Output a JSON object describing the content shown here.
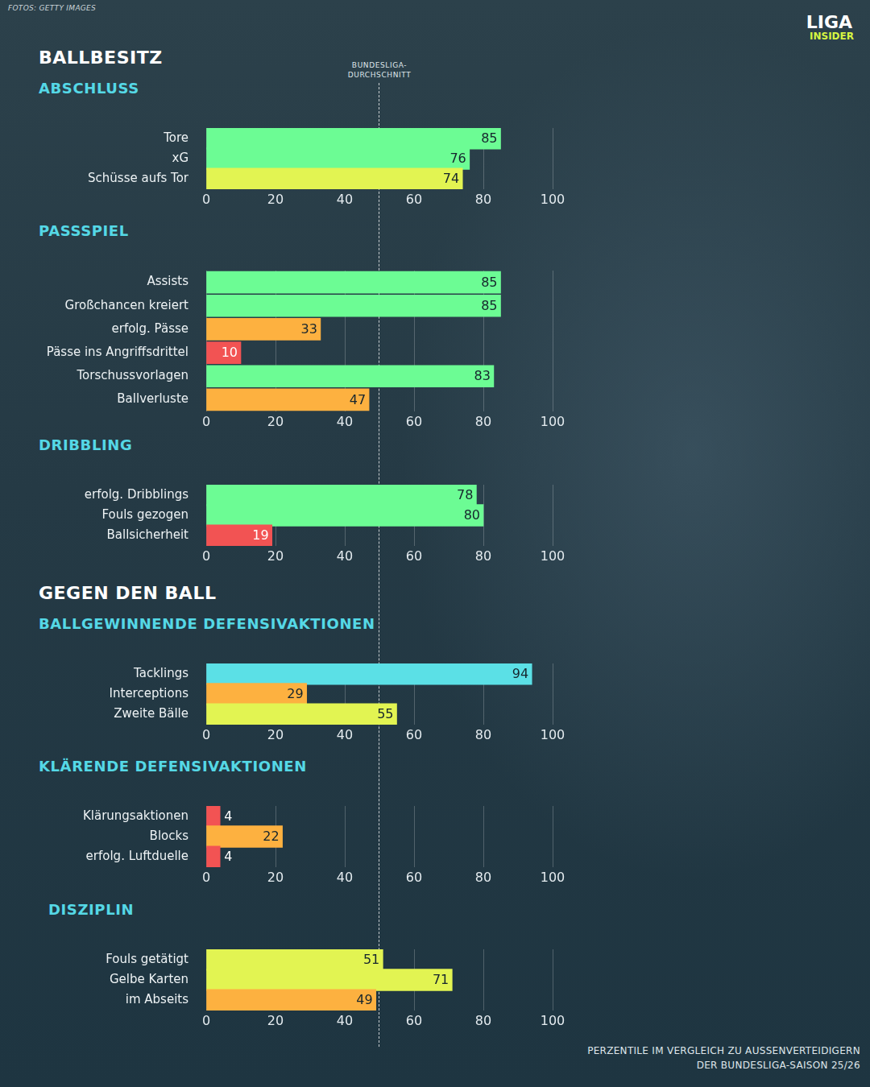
{
  "credit": "FOTOS: GETTY IMAGES",
  "logo": [
    "LIGA",
    "INSIDER"
  ],
  "reference_line": {
    "value": 50,
    "label": "BUNDESLIGA-DURCHSCHNITT"
  },
  "footnote": [
    "PERZENTILE IM VERGLEICH ZU AUSSENVERTEIDIGERN",
    "DER BUNDESLIGA-SAISON 25/26"
  ],
  "chart_data": [
    {
      "type": "bar",
      "orientation": "horizontal",
      "section": "BALLBESITZ",
      "title": "ABSCHLUSS",
      "categories": [
        "Tore",
        "xG",
        "Schüsse aufs Tor"
      ],
      "values": [
        85,
        76,
        74
      ],
      "colors": [
        "#6cfc94",
        "#6cfc94",
        "#e2f452"
      ],
      "xlim": [
        0,
        100
      ],
      "xticks": [
        0,
        20,
        40,
        60,
        80,
        100
      ],
      "grid": true,
      "data_labels": true
    },
    {
      "type": "bar",
      "orientation": "horizontal",
      "title": "PASSSPIEL",
      "categories": [
        "Assists",
        "Großchancen kreiert",
        "erfolg. Pässe",
        "Pässe ins Angriffsdrittel",
        "Torschussvorlagen",
        "Ballverluste"
      ],
      "values": [
        85,
        85,
        33,
        10,
        83,
        47
      ],
      "colors": [
        "#6cfc94",
        "#6cfc94",
        "#fdb140",
        "#f25353",
        "#6cfc94",
        "#fdb140"
      ],
      "xlim": [
        0,
        100
      ],
      "xticks": [
        0,
        20,
        40,
        60,
        80,
        100
      ],
      "grid": true,
      "data_labels": true
    },
    {
      "type": "bar",
      "orientation": "horizontal",
      "title": "DRIBBLING",
      "categories": [
        "erfolg. Dribblings",
        "Fouls gezogen",
        "Ballsicherheit"
      ],
      "values": [
        78,
        80,
        19
      ],
      "colors": [
        "#6cfc94",
        "#6cfc94",
        "#f25353"
      ],
      "xlim": [
        0,
        100
      ],
      "xticks": [
        0,
        20,
        40,
        60,
        80,
        100
      ],
      "grid": true,
      "data_labels": true
    },
    {
      "type": "bar",
      "orientation": "horizontal",
      "section": "GEGEN DEN BALL",
      "title": "BALLGEWINNENDE DEFENSIVAKTIONEN",
      "categories": [
        "Tacklings",
        "Interceptions",
        "Zweite Bälle"
      ],
      "values": [
        94,
        29,
        55
      ],
      "colors": [
        "#5be0e6",
        "#fdb140",
        "#e2f452"
      ],
      "xlim": [
        0,
        100
      ],
      "xticks": [
        0,
        20,
        40,
        60,
        80,
        100
      ],
      "grid": true,
      "data_labels": true
    },
    {
      "type": "bar",
      "orientation": "horizontal",
      "title": "KLÄRENDE DEFENSIVAKTIONEN",
      "categories": [
        "Klärungsaktionen",
        "Blocks",
        "erfolg. Luftduelle"
      ],
      "values": [
        4,
        22,
        4
      ],
      "colors": [
        "#f25353",
        "#fdb140",
        "#f25353"
      ],
      "xlim": [
        0,
        100
      ],
      "xticks": [
        0,
        20,
        40,
        60,
        80,
        100
      ],
      "grid": true,
      "data_labels": true
    },
    {
      "type": "bar",
      "orientation": "horizontal",
      "title": "DISZIPLIN",
      "categories": [
        "Fouls getätigt",
        "Gelbe Karten",
        "im Abseits"
      ],
      "values": [
        51,
        71,
        49
      ],
      "colors": [
        "#e2f452",
        "#e2f452",
        "#fdb140"
      ],
      "xlim": [
        0,
        100
      ],
      "xticks": [
        0,
        20,
        40,
        60,
        80,
        100
      ],
      "grid": true,
      "data_labels": true
    }
  ]
}
